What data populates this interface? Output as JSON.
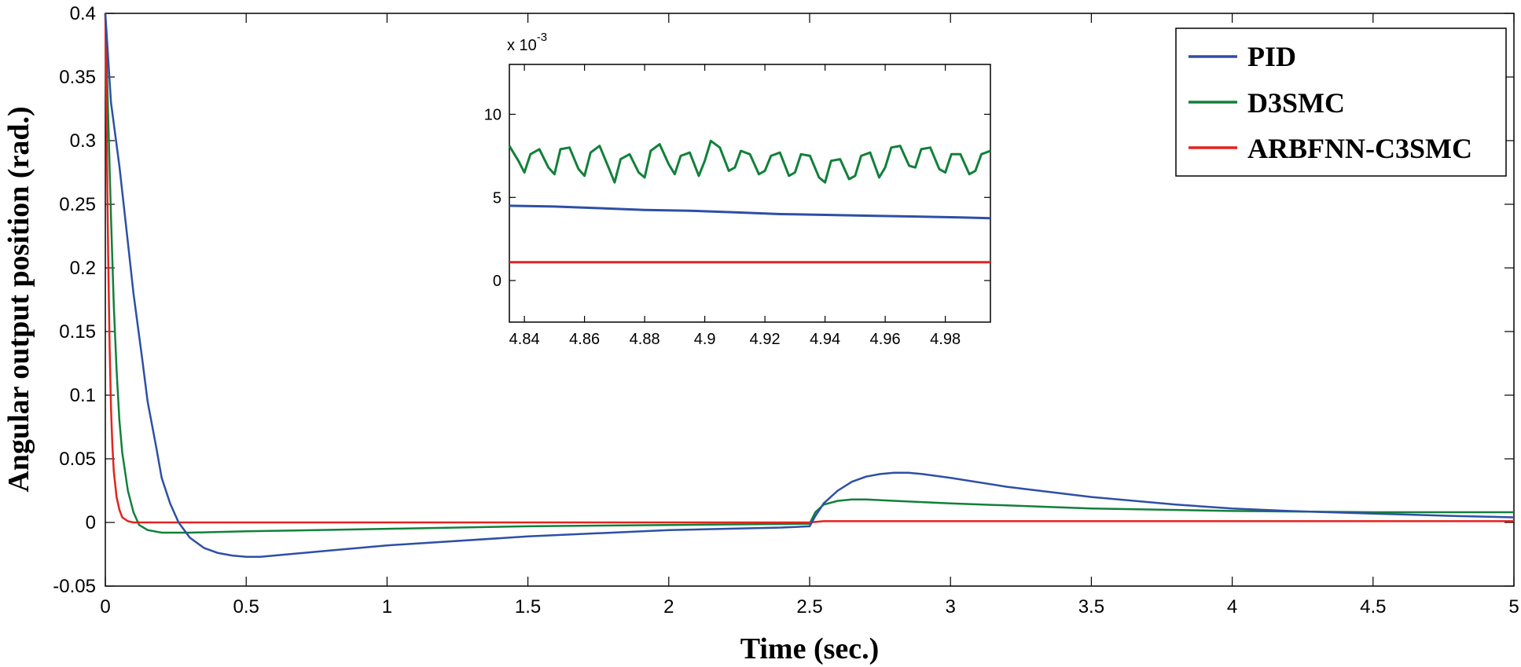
{
  "chart_data": [
    {
      "type": "line",
      "id": "main",
      "xlabel": "Time (sec.)",
      "ylabel": "Angular output position (rad.)",
      "xlim": [
        0,
        5
      ],
      "ylim": [
        -0.05,
        0.4
      ],
      "xticks": [
        0,
        0.5,
        1,
        1.5,
        2,
        2.5,
        3,
        3.5,
        4,
        4.5,
        5
      ],
      "yticks": [
        -0.05,
        0,
        0.05,
        0.1,
        0.15,
        0.2,
        0.25,
        0.3,
        0.35,
        0.4
      ],
      "xtick_labels": [
        "0",
        "0.5",
        "1",
        "1.5",
        "2",
        "2.5",
        "3",
        "3.5",
        "4",
        "4.5",
        "5"
      ],
      "ytick_labels": [
        "-0.05",
        "0",
        "0.05",
        "0.1",
        "0.15",
        "0.2",
        "0.25",
        "0.3",
        "0.35",
        "0.4"
      ],
      "legend": {
        "position": "top-right",
        "entries": [
          "PID",
          "D3SMC",
          "ARBFNN-C3SMC"
        ]
      },
      "series": [
        {
          "name": "PID",
          "color": "#2e4fa5",
          "x": [
            0,
            0.02,
            0.05,
            0.08,
            0.1,
            0.13,
            0.15,
            0.18,
            0.2,
            0.23,
            0.26,
            0.3,
            0.35,
            0.4,
            0.45,
            0.5,
            0.55,
            0.6,
            0.8,
            1.0,
            1.5,
            2.0,
            2.4,
            2.5,
            2.52,
            2.55,
            2.6,
            2.65,
            2.7,
            2.75,
            2.8,
            2.85,
            2.9,
            3.0,
            3.2,
            3.5,
            3.8,
            4.0,
            4.2,
            4.5,
            4.8,
            5.0
          ],
          "y": [
            0.4,
            0.33,
            0.28,
            0.22,
            0.18,
            0.13,
            0.095,
            0.06,
            0.035,
            0.015,
            0.0,
            -0.012,
            -0.02,
            -0.024,
            -0.026,
            -0.027,
            -0.027,
            -0.026,
            -0.022,
            -0.018,
            -0.011,
            -0.006,
            -0.004,
            -0.003,
            0.005,
            0.015,
            0.025,
            0.032,
            0.036,
            0.038,
            0.039,
            0.039,
            0.038,
            0.035,
            0.028,
            0.02,
            0.014,
            0.011,
            0.009,
            0.007,
            0.005,
            0.004
          ]
        },
        {
          "name": "D3SMC",
          "color": "#12803a",
          "x": [
            0,
            0.01,
            0.02,
            0.03,
            0.04,
            0.05,
            0.06,
            0.08,
            0.1,
            0.12,
            0.15,
            0.2,
            0.25,
            0.3,
            0.5,
            1.0,
            1.5,
            2.0,
            2.5,
            2.52,
            2.55,
            2.6,
            2.65,
            2.7,
            2.8,
            3.0,
            3.5,
            4.0,
            4.5,
            5.0
          ],
          "y": [
            0.4,
            0.32,
            0.24,
            0.17,
            0.12,
            0.08,
            0.055,
            0.025,
            0.008,
            -0.002,
            -0.006,
            -0.008,
            -0.008,
            -0.008,
            -0.007,
            -0.005,
            -0.003,
            -0.002,
            -0.001,
            0.008,
            0.014,
            0.017,
            0.018,
            0.018,
            0.017,
            0.015,
            0.011,
            0.009,
            0.008,
            0.008
          ]
        },
        {
          "name": "ARBFNN-C3SMC",
          "color": "#e3231f",
          "x": [
            0,
            0.005,
            0.01,
            0.015,
            0.02,
            0.025,
            0.03,
            0.04,
            0.05,
            0.06,
            0.08,
            0.1,
            2.5,
            2.55,
            5.0
          ],
          "y": [
            0.4,
            0.3,
            0.21,
            0.14,
            0.09,
            0.06,
            0.04,
            0.02,
            0.01,
            0.004,
            0.001,
            0.0,
            0.0,
            0.001,
            0.001
          ]
        }
      ]
    },
    {
      "type": "line",
      "id": "inset",
      "exponent_label": "x 10",
      "exponent_power": "-3",
      "xlim": [
        4.835,
        4.995
      ],
      "ylim": [
        -2.5,
        13
      ],
      "xticks": [
        4.84,
        4.86,
        4.88,
        4.9,
        4.92,
        4.94,
        4.96,
        4.98
      ],
      "yticks": [
        0,
        5,
        10
      ],
      "xtick_labels": [
        "4.84",
        "4.86",
        "4.88",
        "4.9",
        "4.92",
        "4.94",
        "4.96",
        "4.98"
      ],
      "ytick_labels": [
        "0",
        "5",
        "10"
      ],
      "series": [
        {
          "name": "PID",
          "color": "#2e4fa5",
          "x": [
            4.835,
            4.85,
            4.865,
            4.88,
            4.895,
            4.91,
            4.925,
            4.94,
            4.955,
            4.97,
            4.985,
            4.995
          ],
          "y": [
            4.5,
            4.45,
            4.35,
            4.25,
            4.2,
            4.1,
            4.0,
            3.95,
            3.9,
            3.85,
            3.8,
            3.75
          ]
        },
        {
          "name": "D3SMC",
          "color": "#12803a",
          "x": [
            4.835,
            4.838,
            4.84,
            4.842,
            4.845,
            4.848,
            4.85,
            4.852,
            4.855,
            4.858,
            4.86,
            4.862,
            4.865,
            4.868,
            4.87,
            4.872,
            4.875,
            4.878,
            4.88,
            4.882,
            4.885,
            4.888,
            4.89,
            4.892,
            4.895,
            4.898,
            4.9,
            4.902,
            4.905,
            4.908,
            4.91,
            4.912,
            4.915,
            4.918,
            4.92,
            4.922,
            4.925,
            4.928,
            4.93,
            4.932,
            4.935,
            4.938,
            4.94,
            4.942,
            4.945,
            4.948,
            4.95,
            4.952,
            4.955,
            4.958,
            4.96,
            4.962,
            4.965,
            4.968,
            4.97,
            4.972,
            4.975,
            4.978,
            4.98,
            4.982,
            4.985,
            4.988,
            4.99,
            4.992,
            4.995
          ],
          "y": [
            8.1,
            7.2,
            6.5,
            7.6,
            7.9,
            6.8,
            6.4,
            7.9,
            8.0,
            6.7,
            6.3,
            7.7,
            8.1,
            6.8,
            5.9,
            7.3,
            7.6,
            6.5,
            6.2,
            7.8,
            8.2,
            7.0,
            6.4,
            7.5,
            7.7,
            6.3,
            7.2,
            8.4,
            8.0,
            6.6,
            6.8,
            7.8,
            7.6,
            6.4,
            6.6,
            7.5,
            7.7,
            6.3,
            6.5,
            7.6,
            7.5,
            6.2,
            5.9,
            7.2,
            7.3,
            6.1,
            6.3,
            7.5,
            7.7,
            6.2,
            6.8,
            8.0,
            8.1,
            6.9,
            6.8,
            7.9,
            8.0,
            6.7,
            6.5,
            7.6,
            7.6,
            6.4,
            6.6,
            7.6,
            7.8
          ]
        },
        {
          "name": "ARBFNN-C3SMC",
          "color": "#e3231f",
          "x": [
            4.835,
            4.995
          ],
          "y": [
            1.1,
            1.1
          ]
        }
      ]
    }
  ]
}
